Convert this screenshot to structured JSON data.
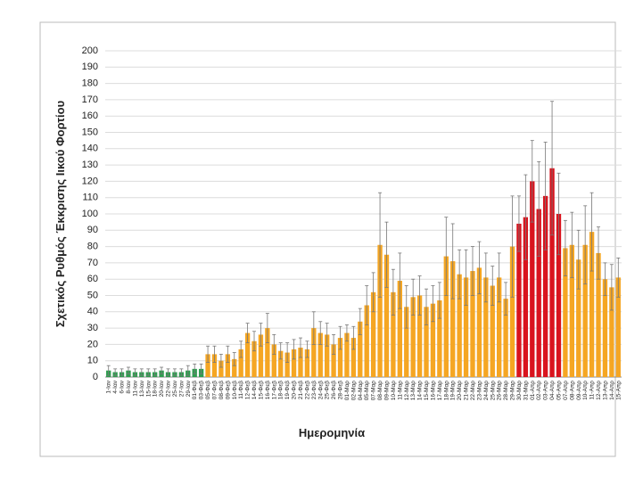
{
  "chart_data": {
    "type": "bar",
    "ylabel": "Σχετικός Ρυθμός Έκκρισης Ιικού Φορτίου",
    "xlabel": "Ημερομηνία",
    "categories": [
      "1-Ιαν",
      "4-Ιαν",
      "6-Ιαν",
      "8-Ιαν",
      "11-Ιαν",
      "13-Ιαν",
      "15-Ιαν",
      "18-Ιαν",
      "20-Ιαν",
      "22-Ιαν",
      "25-Ιαν",
      "27-Ιαν",
      "29-Ιαν",
      "01-Φεβ",
      "03-Φεβ",
      "05-Φεβ",
      "07-Φεβ",
      "08-Φεβ",
      "09-Φεβ",
      "10-Φεβ",
      "11-Φεβ",
      "12-Φεβ",
      "14-Φεβ",
      "15-Φεβ",
      "16-Φεβ",
      "17-Φεβ",
      "18-Φεβ",
      "19-Φεβ",
      "20-Φεβ",
      "21-Φεβ",
      "22-Φεβ",
      "23-Φεβ",
      "24-Φεβ",
      "25-Φεβ",
      "26-Φεβ",
      "28-Φεβ",
      "01-Μαρ",
      "02-Μαρ",
      "04-Μαρ",
      "05-Μαρ",
      "07-Μαρ",
      "08-Μαρ",
      "09-Μαρ",
      "10-Μαρ",
      "11-Μαρ",
      "12-Μαρ",
      "13-Μαρ",
      "14-Μαρ",
      "15-Μαρ",
      "16-Μαρ",
      "17-Μαρ",
      "18-Μαρ",
      "19-Μαρ",
      "20-Μαρ",
      "21-Μαρ",
      "22-Μαρ",
      "23-Μαρ",
      "24-Μαρ",
      "25-Μαρ",
      "26-Μαρ",
      "28-Μαρ",
      "29-Μαρ",
      "30-Μαρ",
      "31-Μαρ",
      "01-Απρ",
      "02-Απρ",
      "03-Απρ",
      "04-Απρ",
      "05-Απρ",
      "07-Απρ",
      "08-Απρ",
      "09-Απρ",
      "10-Απρ",
      "11-Απρ",
      "12-Απρ",
      "13-Απρ",
      "14-Απρ",
      "15-Απρ"
    ],
    "series": [
      {
        "color": "#2e9e4f",
        "values": [
          4,
          3,
          3,
          4,
          3,
          3,
          3,
          3,
          4,
          3,
          3,
          3,
          4,
          5,
          5,
          null,
          null,
          null,
          null,
          null,
          null,
          null,
          null,
          null,
          null,
          null,
          null,
          null,
          null,
          null,
          null,
          null,
          null,
          null,
          null,
          null,
          null,
          null,
          null,
          null,
          null,
          null,
          null,
          null,
          null,
          null,
          null,
          null,
          null,
          null,
          null,
          null,
          null,
          null,
          null,
          null,
          null,
          null,
          null,
          null,
          null,
          null,
          null,
          null,
          null,
          null,
          null,
          null,
          null,
          null,
          null,
          null,
          null,
          null,
          null,
          null,
          null,
          null
        ],
        "errors": [
          3,
          2,
          2,
          2,
          2,
          2,
          2,
          2,
          2,
          2,
          2,
          2,
          3,
          3,
          3,
          null,
          null,
          null,
          null,
          null,
          null,
          null,
          null,
          null,
          null,
          null,
          null,
          null,
          null,
          null,
          null,
          null,
          null,
          null,
          null,
          null,
          null,
          null,
          null,
          null,
          null,
          null,
          null,
          null,
          null,
          null,
          null,
          null,
          null,
          null,
          null,
          null,
          null,
          null,
          null,
          null,
          null,
          null,
          null,
          null,
          null,
          null,
          null,
          null,
          null,
          null,
          null,
          null,
          null,
          null,
          null,
          null,
          null,
          null,
          null,
          null,
          null,
          null
        ]
      },
      {
        "color": "#f5a623",
        "values": [
          null,
          null,
          null,
          null,
          null,
          null,
          null,
          null,
          null,
          null,
          null,
          null,
          null,
          null,
          null,
          14,
          14,
          10,
          14,
          11,
          17,
          27,
          22,
          26,
          30,
          20,
          16,
          15,
          17,
          18,
          17,
          30,
          27,
          26,
          20,
          24,
          27,
          24,
          34,
          44,
          52,
          81,
          75,
          52,
          59,
          43,
          49,
          50,
          43,
          45,
          47,
          74,
          71,
          63,
          61,
          65,
          67,
          61,
          56,
          61,
          48,
          80,
          null,
          null,
          null,
          null,
          null,
          null,
          null,
          79,
          81,
          72,
          81,
          89,
          76,
          60,
          55,
          61
        ],
        "errors": [
          null,
          null,
          null,
          null,
          null,
          null,
          null,
          null,
          null,
          null,
          null,
          null,
          null,
          null,
          null,
          5,
          5,
          4,
          5,
          4,
          5,
          6,
          6,
          7,
          9,
          6,
          5,
          6,
          6,
          6,
          5,
          10,
          7,
          7,
          6,
          7,
          5,
          7,
          8,
          12,
          12,
          32,
          20,
          14,
          17,
          13,
          11,
          12,
          11,
          11,
          11,
          24,
          23,
          15,
          17,
          15,
          16,
          15,
          12,
          15,
          10,
          31,
          null,
          null,
          null,
          null,
          null,
          null,
          null,
          17,
          20,
          18,
          24,
          24,
          16,
          10,
          14,
          12
        ]
      },
      {
        "color": "#d9141e",
        "values": [
          null,
          null,
          null,
          null,
          null,
          null,
          null,
          null,
          null,
          null,
          null,
          null,
          null,
          null,
          null,
          null,
          null,
          null,
          null,
          null,
          null,
          null,
          null,
          null,
          null,
          null,
          null,
          null,
          null,
          null,
          null,
          null,
          null,
          null,
          null,
          null,
          null,
          null,
          null,
          null,
          null,
          null,
          null,
          null,
          null,
          null,
          null,
          null,
          null,
          null,
          null,
          null,
          null,
          null,
          null,
          null,
          null,
          null,
          null,
          null,
          null,
          null,
          94,
          98,
          120,
          103,
          111,
          128,
          100,
          null,
          null,
          null,
          null,
          null,
          null,
          null,
          null,
          null
        ],
        "errors": [
          null,
          null,
          null,
          null,
          null,
          null,
          null,
          null,
          null,
          null,
          null,
          null,
          null,
          null,
          null,
          null,
          null,
          null,
          null,
          null,
          null,
          null,
          null,
          null,
          null,
          null,
          null,
          null,
          null,
          null,
          null,
          null,
          null,
          null,
          null,
          null,
          null,
          null,
          null,
          null,
          null,
          null,
          null,
          null,
          null,
          null,
          null,
          null,
          null,
          null,
          null,
          null,
          null,
          null,
          null,
          null,
          null,
          null,
          null,
          null,
          null,
          null,
          17,
          26,
          25,
          29,
          33,
          41,
          25,
          null,
          null,
          null,
          null,
          null,
          null,
          null,
          null,
          null
        ]
      }
    ],
    "ylim": [
      0,
      200
    ],
    "yticks": [
      0,
      10,
      20,
      30,
      40,
      50,
      60,
      70,
      80,
      90,
      100,
      110,
      120,
      130,
      140,
      150,
      160,
      170,
      180,
      190,
      200
    ],
    "grid": true
  }
}
